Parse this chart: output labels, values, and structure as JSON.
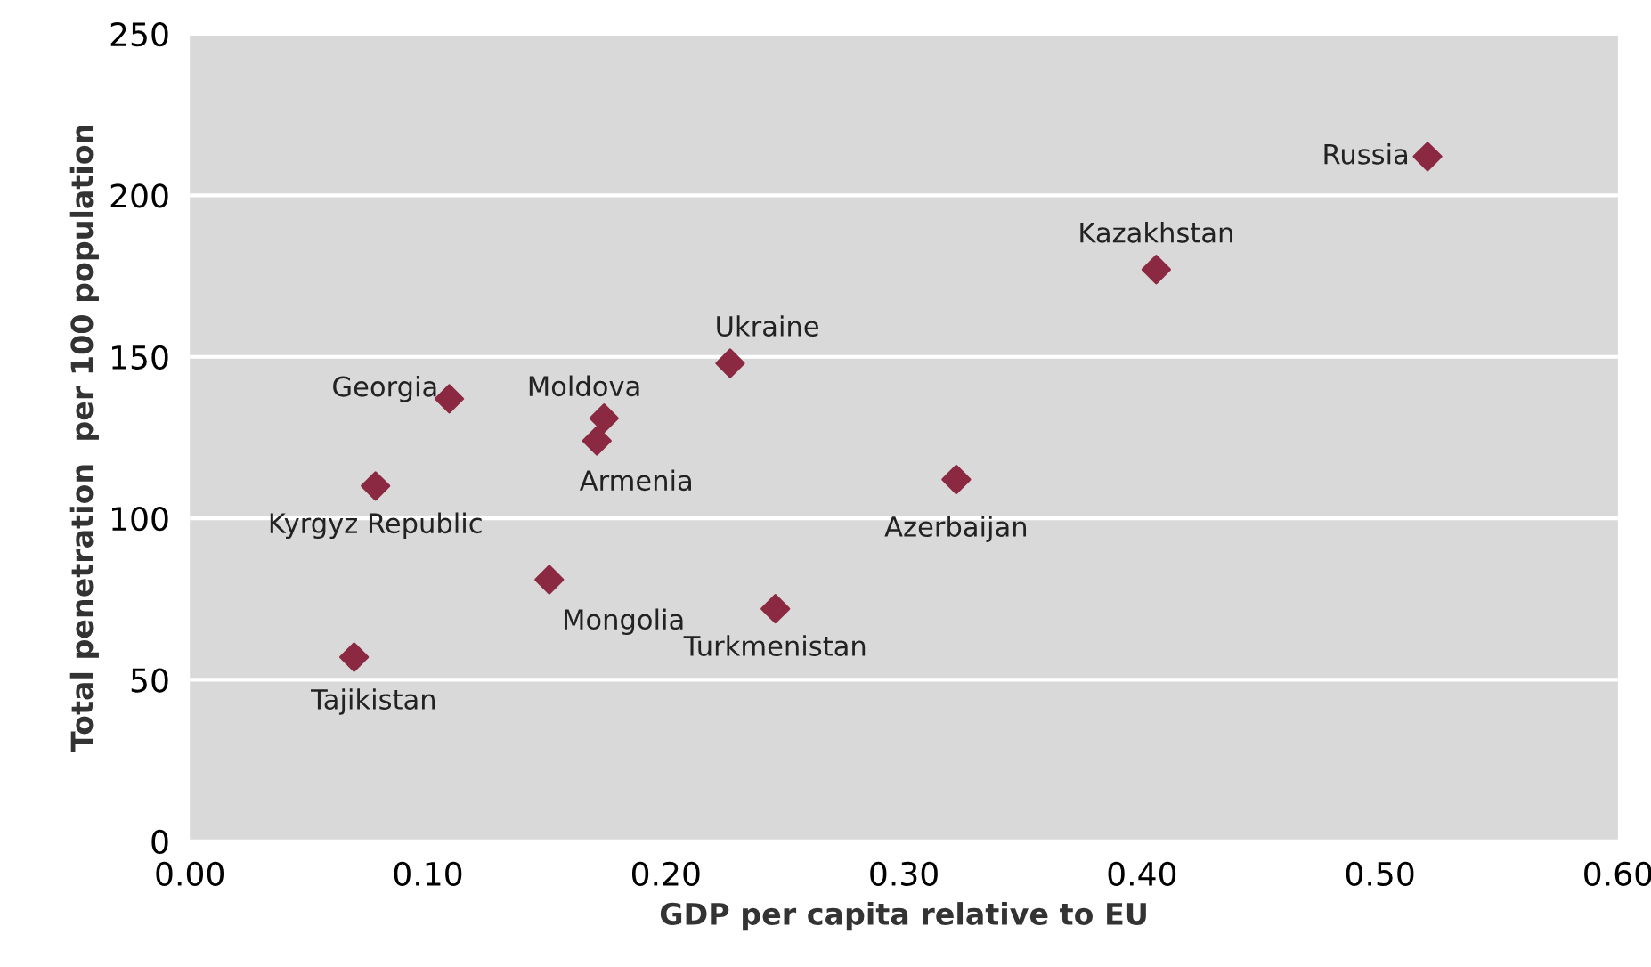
{
  "chart_data": {
    "type": "scatter",
    "xlabel": "GDP per capita relative to EU",
    "ylabel": "Total penetration  per 100 population",
    "x": [
      0.52,
      0.406,
      0.227,
      0.322,
      0.246,
      0.174,
      0.171,
      0.109,
      0.078,
      0.151,
      0.069
    ],
    "series": [
      {
        "color": "#8b2942",
        "values": [
          212,
          177,
          148,
          112,
          72,
          131,
          124,
          137,
          110,
          81,
          57
        ]
      }
    ],
    "annotations": [
      {
        "text": "Russia",
        "x": 0.52,
        "y": 212
      },
      {
        "text": "Kazakhstan",
        "x": 0.406,
        "y": 177
      },
      {
        "text": "Ukraine",
        "x": 0.227,
        "y": 148
      },
      {
        "text": "Azerbaijan",
        "x": 0.322,
        "y": 112
      },
      {
        "text": "Turkmenistan",
        "x": 0.246,
        "y": 72
      },
      {
        "text": "Moldova",
        "x": 0.174,
        "y": 131
      },
      {
        "text": "Armenia",
        "x": 0.171,
        "y": 124
      },
      {
        "text": "Georgia",
        "x": 0.109,
        "y": 137
      },
      {
        "text": "Kyrgyz Republic",
        "x": 0.078,
        "y": 110
      },
      {
        "text": "Mongolia",
        "x": 0.151,
        "y": 81
      },
      {
        "text": "Tajikistan",
        "x": 0.069,
        "y": 57
      }
    ],
    "xlim": [
      0,
      0.6
    ],
    "xticks": [
      {
        "value": 0,
        "label": "0.00"
      },
      {
        "value": 0.1,
        "label": "0.10"
      },
      {
        "value": 0.2,
        "label": "0.20"
      },
      {
        "value": 0.3,
        "label": "0.30"
      },
      {
        "value": 0.4,
        "label": "0.40"
      },
      {
        "value": 0.5,
        "label": "0.50"
      },
      {
        "value": 0.6,
        "label": "0.60"
      }
    ],
    "ylim": [
      0,
      250
    ],
    "yticks": [
      0,
      50,
      100,
      150,
      200,
      250
    ],
    "grid": "y",
    "marker": "diamond",
    "legend": false
  }
}
